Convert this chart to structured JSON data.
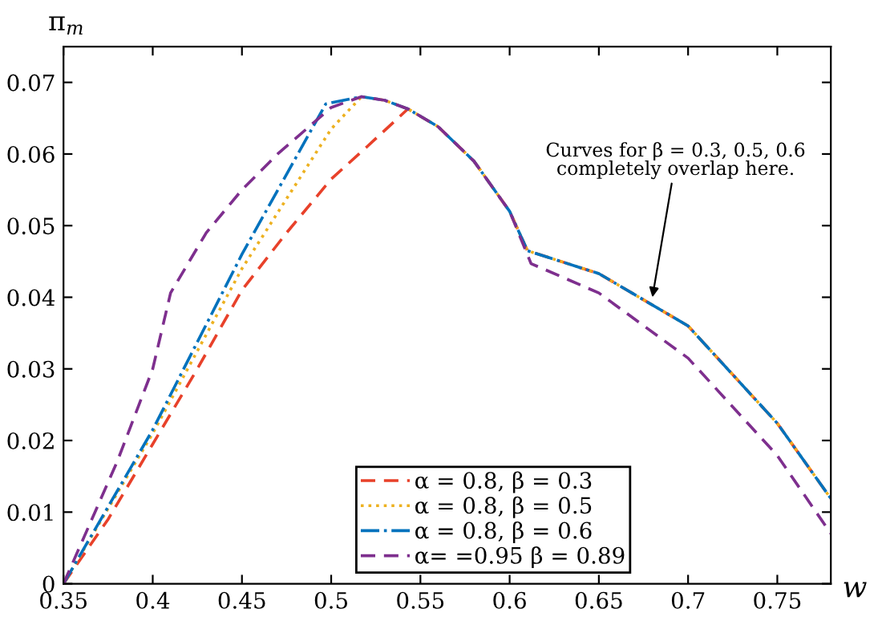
{
  "chart_data": {
    "type": "line",
    "xlabel": "w",
    "ylabel": "π$_{m}$",
    "xlim": [
      0.35,
      0.78
    ],
    "ylim": [
      0,
      0.075
    ],
    "xticks": [
      0.35,
      0.4,
      0.45,
      0.5,
      0.55,
      0.6,
      0.65,
      0.7,
      0.75
    ],
    "yticks": [
      0,
      0.01,
      0.02,
      0.03,
      0.04,
      0.05,
      0.06,
      0.07
    ],
    "grid": false,
    "legend": "bottom",
    "marker": "none",
    "annotations": [
      {
        "text": "Curves for β = 0.3, 0.5, 0.6\ncompletely overlap here.",
        "x": 0.68,
        "y": 0.04
      }
    ],
    "series": [
      {
        "name": "α = 0.8, β = 0.3",
        "color": "#e8412a",
        "line_style": "dashed",
        "x": [
          0.35,
          0.375,
          0.4,
          0.425,
          0.45,
          0.475,
          0.5,
          0.52,
          0.543,
          0.56,
          0.58,
          0.6,
          0.61,
          0.65,
          0.7,
          0.75,
          0.78
        ],
        "values": [
          0,
          0.009,
          0.0195,
          0.03,
          0.041,
          0.049,
          0.0565,
          0.061,
          0.0663,
          0.0638,
          0.059,
          0.052,
          0.0465,
          0.0433,
          0.036,
          0.0224,
          0.0119
        ]
      },
      {
        "name": "α = 0.8, β = 0.5",
        "color": "#edb120",
        "line_style": "dotted",
        "x": [
          0.35,
          0.4,
          0.45,
          0.5,
          0.517,
          0.53,
          0.543,
          0.56,
          0.58,
          0.6,
          0.61,
          0.65,
          0.7,
          0.75,
          0.78
        ],
        "values": [
          0,
          0.021,
          0.044,
          0.0635,
          0.068,
          0.0675,
          0.0663,
          0.0638,
          0.059,
          0.052,
          0.0465,
          0.0433,
          0.036,
          0.0224,
          0.0119
        ]
      },
      {
        "name": "α = 0.8, β = 0.6",
        "color": "#0072bd",
        "line_style": "dashdot",
        "x": [
          0.35,
          0.4,
          0.45,
          0.497,
          0.517,
          0.53,
          0.543,
          0.56,
          0.58,
          0.6,
          0.61,
          0.65,
          0.7,
          0.75,
          0.78
        ],
        "values": [
          0,
          0.0215,
          0.046,
          0.067,
          0.068,
          0.0675,
          0.0663,
          0.0638,
          0.059,
          0.052,
          0.0465,
          0.0433,
          0.036,
          0.0224,
          0.0119
        ]
      },
      {
        "name": "α= =0.95 β = 0.89",
        "color": "#7e2f8e",
        "line_style": "dashed",
        "x": [
          0.35,
          0.38,
          0.4,
          0.41,
          0.43,
          0.45,
          0.47,
          0.5,
          0.517,
          0.53,
          0.543,
          0.56,
          0.58,
          0.6,
          0.612,
          0.65,
          0.7,
          0.75,
          0.78
        ],
        "values": [
          0,
          0.017,
          0.03,
          0.0406,
          0.049,
          0.055,
          0.06,
          0.0665,
          0.068,
          0.0675,
          0.0663,
          0.0638,
          0.059,
          0.052,
          0.0447,
          0.0406,
          0.0315,
          0.0179,
          0.007
        ]
      }
    ]
  }
}
